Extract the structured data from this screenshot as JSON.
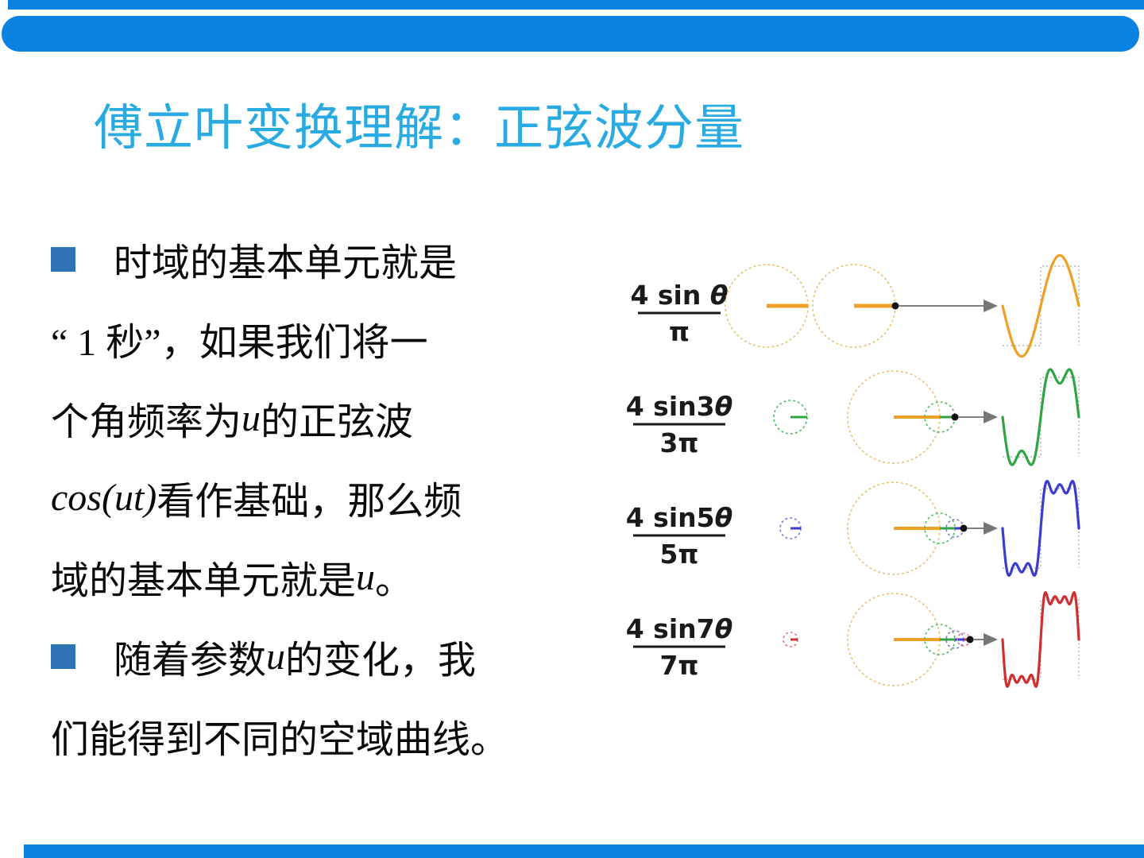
{
  "slide": {
    "title": "傅立叶变换理解：正弦波分量",
    "colors": {
      "accent": "#0a82e2",
      "title": "#29abe2",
      "bullet": "#2e74b5",
      "text": "#0a0a0a"
    }
  },
  "body": {
    "lines": [
      {
        "bullet": true,
        "runs": [
          {
            "t": "时域的基本单元就是"
          }
        ]
      },
      {
        "bullet": false,
        "runs": [
          {
            "t": "“ 1 秒”，如果我们将一"
          }
        ]
      },
      {
        "bullet": false,
        "runs": [
          {
            "t": "个角频率为 "
          },
          {
            "t": "u",
            "i": true
          },
          {
            "t": " 的正弦波"
          }
        ]
      },
      {
        "bullet": false,
        "runs": [
          {
            "t": "cos(ut)",
            "i": true
          },
          {
            "t": " 看作基础，那么频"
          }
        ]
      },
      {
        "bullet": false,
        "runs": [
          {
            "t": "域的基本单元就是 "
          },
          {
            "t": "u",
            "i": true
          },
          {
            "t": " 。"
          }
        ]
      },
      {
        "bullet": true,
        "runs": [
          {
            "t": "随着参数 "
          },
          {
            "t": "u",
            "i": true
          },
          {
            "t": " 的变化，我"
          }
        ]
      },
      {
        "bullet": false,
        "runs": [
          {
            "t": "们能得到不同的空域曲线。"
          }
        ]
      }
    ]
  },
  "figure": {
    "description": "Fourier square-wave components: each row shows the sine term 4·sin(nθ)/(nπ) as rotating circles (epicycles) plus the partial-sum waveform over one period",
    "rows": [
      {
        "n": 1,
        "numerator": "4 sin θ",
        "denominator": "π",
        "wave_color": "#eda024",
        "circle_color": "#e9c173"
      },
      {
        "n": 3,
        "numerator": "4 sin3θ",
        "denominator": "3π",
        "wave_color": "#31a544",
        "circle_color": "#52bb66"
      },
      {
        "n": 5,
        "numerator": "4 sin5θ",
        "denominator": "5π",
        "wave_color": "#3b3bcd",
        "circle_color": "#7b7bdf"
      },
      {
        "n": 7,
        "numerator": "4 sin7θ",
        "denominator": "7π",
        "wave_color": "#cd3030",
        "circle_color": "#e07a7a"
      }
    ],
    "formula_color": "#1a1a1a",
    "arrow_color": "#808080",
    "dot_color": "#111111",
    "guide_color": "#b5b5b5"
  }
}
